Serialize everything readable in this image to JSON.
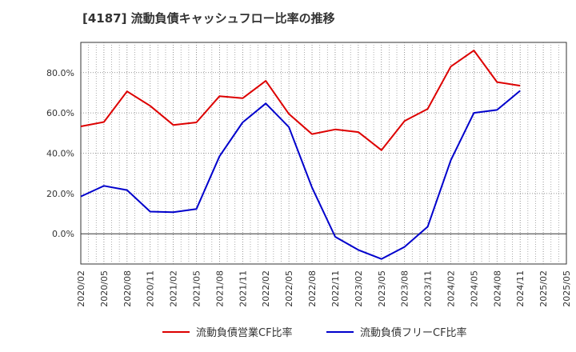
{
  "title": "[4187]  流動負債キャッシュフロー比率の推移",
  "chart_data": {
    "type": "line",
    "title": "[4187]  流動負債キャッシュフロー比率の推移",
    "xlabel": "",
    "ylabel": "",
    "ylim": [
      -15,
      95
    ],
    "y_ticks": [
      0,
      20,
      40,
      60,
      80
    ],
    "y_tick_labels": [
      "0.0%",
      "20.0%",
      "40.0%",
      "60.0%",
      "80.0%"
    ],
    "x_tick_labels": [
      "2020/02",
      "2020/05",
      "2020/08",
      "2020/11",
      "2021/02",
      "2021/05",
      "2021/08",
      "2021/11",
      "2022/02",
      "2022/05",
      "2022/08",
      "2022/11",
      "2023/02",
      "2023/05",
      "2023/08",
      "2023/11",
      "2024/02",
      "2024/05",
      "2024/08",
      "2024/11",
      "2025/02",
      "2025/05"
    ],
    "grid": true,
    "legend_position": "bottom",
    "series": [
      {
        "name": "流動負債営業CF比率",
        "color": "#dd0000",
        "x": [
          "2020/02",
          "2020/05",
          "2020/08",
          "2020/11",
          "2021/02",
          "2021/05",
          "2021/08",
          "2021/11",
          "2022/02",
          "2022/05",
          "2022/08",
          "2022/11",
          "2023/02",
          "2023/05",
          "2023/08",
          "2023/11",
          "2024/02",
          "2024/05",
          "2024/08",
          "2024/11"
        ],
        "values": [
          53.3,
          55.5,
          70.7,
          63.5,
          54.0,
          55.3,
          68.3,
          67.3,
          75.9,
          59.5,
          49.5,
          51.8,
          50.5,
          41.5,
          56.0,
          62.0,
          83.0,
          91.0,
          75.3,
          73.5
        ]
      },
      {
        "name": "流動負債フリーCF比率",
        "color": "#0000cc",
        "x": [
          "2020/02",
          "2020/05",
          "2020/08",
          "2020/11",
          "2021/02",
          "2021/05",
          "2021/08",
          "2021/11",
          "2022/02",
          "2022/05",
          "2022/08",
          "2022/11",
          "2023/02",
          "2023/05",
          "2023/08",
          "2023/11",
          "2024/02",
          "2024/05",
          "2024/08",
          "2024/11"
        ],
        "values": [
          18.5,
          23.8,
          21.7,
          11.0,
          10.7,
          12.3,
          38.5,
          55.3,
          64.7,
          53.0,
          23.0,
          -1.5,
          -8.0,
          -12.5,
          -6.5,
          3.5,
          36.5,
          60.0,
          61.5,
          71.0
        ]
      }
    ]
  }
}
